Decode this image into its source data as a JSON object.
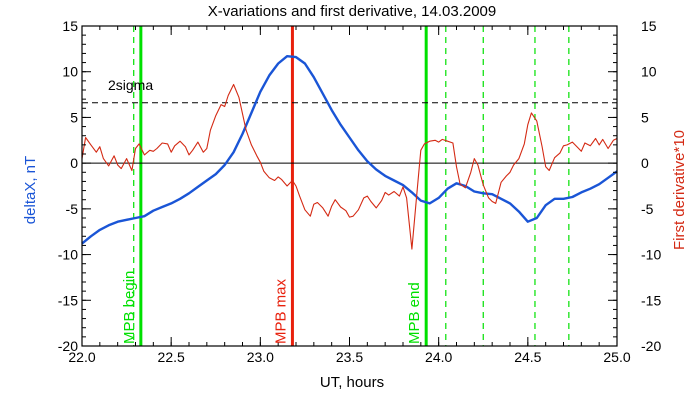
{
  "chart_data": {
    "type": "line",
    "title": "X-variations and first derivative, 14.03.2009",
    "xlabel": "UT, hours",
    "ylabel_left": "deltaX, nT",
    "ylabel_right": "First derivative*10",
    "xlim": [
      22.0,
      25.0
    ],
    "ylim": [
      -20,
      15
    ],
    "x_ticks": [
      22.0,
      22.5,
      23.0,
      23.5,
      24.0,
      24.5,
      25.0
    ],
    "x_tick_labels": [
      "22.0",
      "22.5",
      "23.0",
      "23.5",
      "24.0",
      "24.5",
      "25.0"
    ],
    "y_ticks": [
      15,
      10,
      5,
      0,
      -5,
      -10,
      -15,
      -20
    ],
    "y_tick_labels": [
      "15",
      "10",
      "5",
      "0",
      "-5",
      "-10",
      "-15",
      "-20"
    ],
    "sigma_level": 6.6,
    "sigma_label": "2sigma",
    "colors": {
      "deltaX": "#1a55d6",
      "derivative": "#d42a14",
      "mpb_marker": "#00e000",
      "max_marker": "#e8200c",
      "axis": "#000000"
    },
    "series": [
      {
        "role": "deltaX",
        "x": [
          22.0,
          22.05,
          22.1,
          22.15,
          22.2,
          22.25,
          22.3,
          22.35,
          22.4,
          22.45,
          22.5,
          22.55,
          22.6,
          22.65,
          22.7,
          22.75,
          22.8,
          22.85,
          22.9,
          22.95,
          23.0,
          23.05,
          23.1,
          23.15,
          23.2,
          23.25,
          23.3,
          23.35,
          23.4,
          23.45,
          23.5,
          23.55,
          23.6,
          23.65,
          23.7,
          23.75,
          23.8,
          23.85,
          23.9,
          23.95,
          24.0,
          24.05,
          24.1,
          24.15,
          24.2,
          24.25,
          24.3,
          24.35,
          24.4,
          24.45,
          24.5,
          24.55,
          24.6,
          24.65,
          24.7,
          24.75,
          24.8,
          24.85,
          24.9,
          24.95,
          25.0
        ],
        "y": [
          -8.8,
          -8.0,
          -7.3,
          -6.8,
          -6.4,
          -6.2,
          -6.0,
          -5.8,
          -5.2,
          -4.8,
          -4.4,
          -3.9,
          -3.3,
          -2.6,
          -1.9,
          -1.2,
          -0.2,
          1.2,
          3.2,
          5.5,
          7.8,
          9.6,
          10.9,
          11.7,
          11.6,
          10.9,
          9.4,
          7.6,
          5.8,
          4.2,
          2.8,
          1.4,
          0.2,
          -0.7,
          -1.4,
          -1.9,
          -2.4,
          -3.2,
          -4.1,
          -4.4,
          -3.8,
          -2.8,
          -2.2,
          -2.5,
          -3.1,
          -3.3,
          -3.4,
          -3.9,
          -4.4,
          -5.3,
          -6.4,
          -6.0,
          -4.6,
          -3.9,
          -3.9,
          -3.7,
          -3.2,
          -2.8,
          -2.3,
          -1.6,
          -0.9
        ]
      },
      {
        "role": "derivative",
        "x": [
          22.0,
          22.02,
          22.05,
          22.08,
          22.1,
          22.12,
          22.15,
          22.18,
          22.2,
          22.22,
          22.25,
          22.28,
          22.3,
          22.32,
          22.35,
          22.38,
          22.4,
          22.42,
          22.45,
          22.48,
          22.5,
          22.52,
          22.55,
          22.58,
          22.6,
          22.62,
          22.65,
          22.68,
          22.7,
          22.72,
          22.75,
          22.78,
          22.8,
          22.82,
          22.85,
          22.88,
          22.9,
          22.92,
          22.95,
          22.98,
          23.0,
          23.02,
          23.05,
          23.08,
          23.1,
          23.12,
          23.15,
          23.18,
          23.2,
          23.22,
          23.25,
          23.28,
          23.3,
          23.32,
          23.35,
          23.38,
          23.4,
          23.42,
          23.45,
          23.48,
          23.5,
          23.52,
          23.55,
          23.58,
          23.6,
          23.62,
          23.65,
          23.68,
          23.7,
          23.72,
          23.75,
          23.78,
          23.8,
          23.82,
          23.85,
          23.88,
          23.9,
          23.92,
          23.95,
          23.98,
          24.0,
          24.02,
          24.05,
          24.08,
          24.1,
          24.12,
          24.15,
          24.18,
          24.2,
          24.22,
          24.25,
          24.28,
          24.3,
          24.32,
          24.35,
          24.38,
          24.4,
          24.42,
          24.45,
          24.48,
          24.5,
          24.52,
          24.55,
          24.58,
          24.6,
          24.62,
          24.65,
          24.68,
          24.7,
          24.72,
          24.75,
          24.78,
          24.8,
          24.82,
          24.85,
          24.88,
          24.9,
          24.92,
          24.95,
          24.98,
          25.0
        ],
        "y": [
          0.5,
          2.8,
          2.0,
          1.2,
          1.8,
          0.5,
          -0.3,
          0.8,
          -0.2,
          -0.6,
          0.5,
          -0.8,
          1.6,
          2.1,
          0.9,
          1.4,
          1.3,
          1.6,
          2.2,
          2.1,
          1.2,
          1.9,
          2.4,
          1.8,
          0.9,
          1.4,
          2.3,
          1.2,
          1.6,
          3.6,
          5.2,
          6.4,
          6.2,
          7.4,
          8.6,
          7.2,
          5.4,
          3.6,
          2.0,
          0.8,
          0.1,
          -0.9,
          -1.6,
          -1.9,
          -1.5,
          -1.8,
          -2.5,
          -1.9,
          -2.5,
          -3.6,
          -5.1,
          -5.8,
          -4.5,
          -4.3,
          -4.9,
          -5.8,
          -4.7,
          -4.0,
          -4.8,
          -5.2,
          -5.9,
          -5.8,
          -5.1,
          -3.8,
          -3.6,
          -4.2,
          -4.9,
          -4.1,
          -3.2,
          -3.5,
          -3.1,
          -3.6,
          -2.6,
          -3.8,
          -9.4,
          -2.8,
          1.4,
          2.1,
          2.4,
          2.5,
          2.3,
          2.6,
          2.4,
          2.2,
          -0.4,
          -2.3,
          -2.7,
          -1.0,
          0.5,
          -0.2,
          -2.4,
          -3.8,
          -4.2,
          -4.4,
          -2.1,
          -1.4,
          -1.0,
          -0.2,
          0.5,
          2.1,
          4.2,
          5.5,
          4.6,
          1.8,
          -0.4,
          -0.8,
          0.6,
          1.1,
          1.9,
          2.0,
          2.3,
          1.7,
          1.3,
          2.2,
          1.9,
          2.7,
          2.0,
          2.6,
          1.6,
          2.5,
          2.7
        ]
      }
    ],
    "markers": [
      {
        "role": "mpb",
        "x": 22.33,
        "label": "MPB begin"
      },
      {
        "role": "max",
        "x": 23.18,
        "label": "MPB max"
      },
      {
        "role": "mpb",
        "x": 23.93,
        "label": "MPB end"
      }
    ],
    "dashed_markers_x": [
      22.29,
      24.04,
      24.25,
      24.54,
      24.73
    ]
  }
}
